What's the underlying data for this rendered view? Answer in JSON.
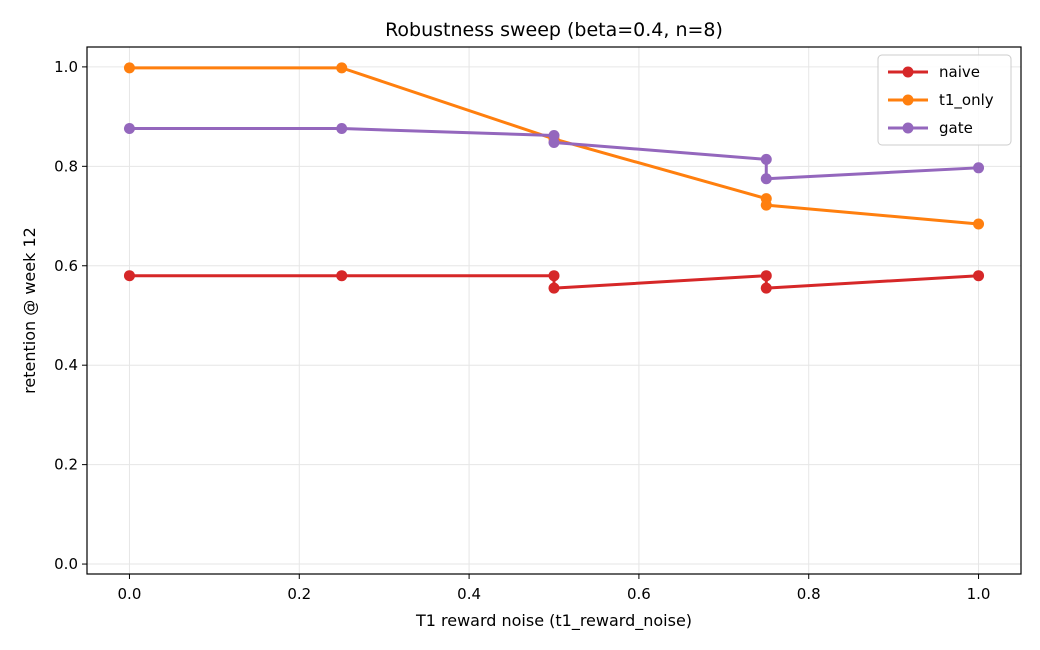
{
  "chart_data": {
    "type": "line",
    "title": "Robustness sweep (beta=0.4, n=8)",
    "xlabel": "T1 reward noise (t1_reward_noise)",
    "ylabel": "retention @ week 12",
    "xlim": [
      -0.05,
      1.05
    ],
    "ylim": [
      -0.02,
      1.04
    ],
    "xticks": [
      0.0,
      0.2,
      0.4,
      0.6,
      0.8,
      1.0
    ],
    "xtick_labels": [
      "0.0",
      "0.2",
      "0.4",
      "0.6",
      "0.8",
      "1.0"
    ],
    "yticks": [
      0.0,
      0.2,
      0.4,
      0.6,
      0.8,
      1.0
    ],
    "ytick_labels": [
      "0.0",
      "0.2",
      "0.4",
      "0.6",
      "0.8",
      "1.0"
    ],
    "grid": true,
    "legend_position": "top-right",
    "series": [
      {
        "name": "naive",
        "color": "#d62728",
        "x": [
          0.0,
          0.25,
          0.5,
          0.5,
          0.75,
          0.75,
          1.0
        ],
        "y": [
          0.58,
          0.58,
          0.58,
          0.555,
          0.58,
          0.555,
          0.58
        ]
      },
      {
        "name": "t1_only",
        "color": "#ff7f0e",
        "x": [
          0.0,
          0.25,
          0.5,
          0.75,
          0.75,
          1.0
        ],
        "y": [
          0.998,
          0.998,
          0.855,
          0.735,
          0.722,
          0.684
        ]
      },
      {
        "name": "gate",
        "color": "#9467bd",
        "x": [
          0.0,
          0.25,
          0.5,
          0.5,
          0.75,
          0.75,
          1.0
        ],
        "y": [
          0.876,
          0.876,
          0.862,
          0.848,
          0.814,
          0.775,
          0.797
        ]
      }
    ]
  }
}
